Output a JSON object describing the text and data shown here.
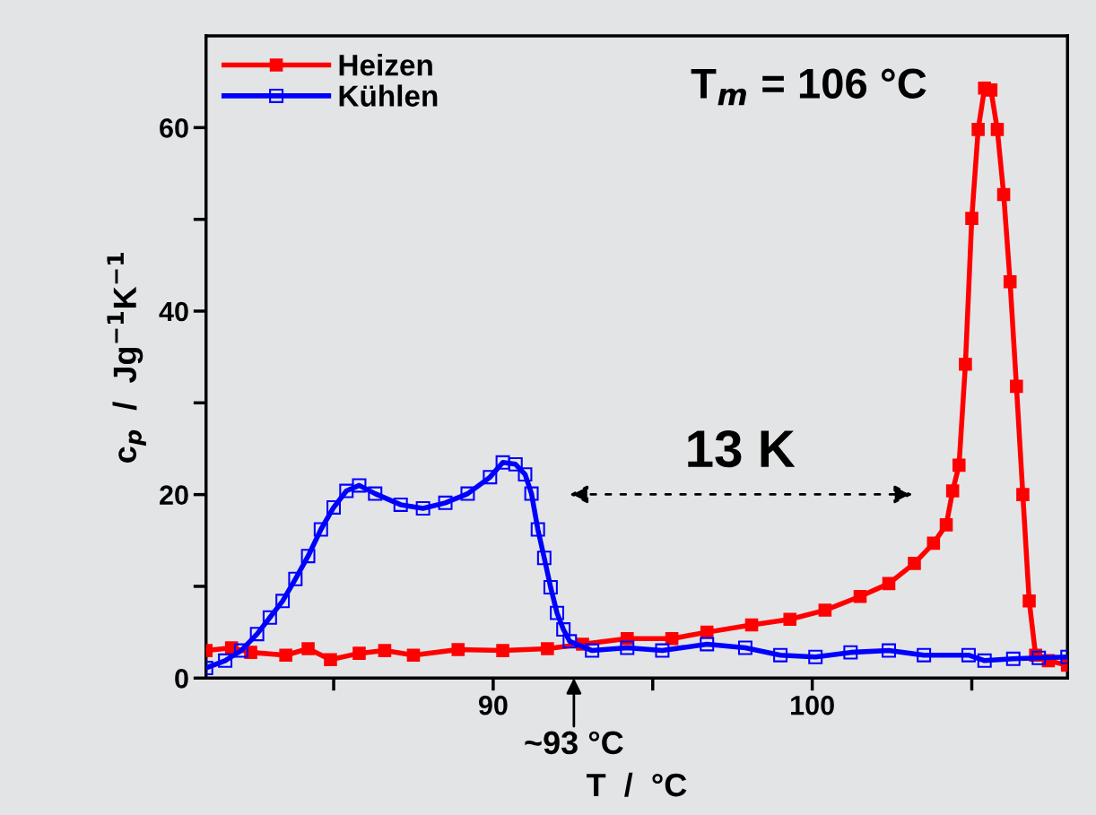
{
  "chart_data": {
    "type": "line",
    "xlabel": "T  /  °C",
    "ylabel": "c$_{p}$  /  Jg$^{−1}$K$^{−1}$",
    "xlim": [
      81,
      108
    ],
    "xticks": [
      {
        "value": 85,
        "label": null
      },
      90,
      {
        "value": 95,
        "label": null
      },
      100,
      {
        "value": 105,
        "label": null
      }
    ],
    "ylim": [
      0,
      70
    ],
    "yticks": [
      0,
      {
        "value": 10,
        "label": null
      },
      20,
      {
        "value": 30,
        "label": null
      },
      40,
      {
        "value": 50,
        "label": null
      },
      60
    ],
    "marker": "square",
    "line_style": "solid",
    "legend": "top left",
    "grid": false,
    "annotations": [
      "T$_{m}$ = 106 °C",
      "13 K",
      "~93 °C"
    ],
    "series": [
      {
        "name": "Heizen",
        "color": "#ff0000",
        "x": [
          81.0,
          81.8,
          82.4,
          83.5,
          84.2,
          84.9,
          85.8,
          86.6,
          87.5,
          88.9,
          90.3,
          91.7,
          92.8,
          94.2,
          95.6,
          96.7,
          98.1,
          99.3,
          100.4,
          101.5,
          102.4,
          103.2,
          103.8,
          104.2,
          104.4,
          104.6,
          104.8,
          105.0,
          105.2,
          105.4,
          105.6,
          105.8,
          106.0,
          106.2,
          106.4,
          106.6,
          106.8,
          107.0,
          107.4,
          108.0
        ],
        "values": [
          3.0,
          3.3,
          2.8,
          2.5,
          3.2,
          2.0,
          2.7,
          3.0,
          2.5,
          3.1,
          3.0,
          3.2,
          3.7,
          4.3,
          4.3,
          5.0,
          5.8,
          6.4,
          7.4,
          8.9,
          10.3,
          12.5,
          14.7,
          16.7,
          20.4,
          23.2,
          34.2,
          50.1,
          59.8,
          64.3,
          64.1,
          59.8,
          52.7,
          43.2,
          31.8,
          20.0,
          8.4,
          2.5,
          1.9,
          1.4
        ]
      },
      {
        "name": "Kühlen",
        "color": "#0000ff",
        "x": [
          81.0,
          81.6,
          82.1,
          82.6,
          83.0,
          83.4,
          83.8,
          84.2,
          84.6,
          85.0,
          85.4,
          85.8,
          86.3,
          87.1,
          87.8,
          88.5,
          89.2,
          89.9,
          90.3,
          90.7,
          91.0,
          91.2,
          91.4,
          91.6,
          91.8,
          92.0,
          92.2,
          92.4,
          93.1,
          94.2,
          95.3,
          96.7,
          97.9,
          99.0,
          100.1,
          101.2,
          102.4,
          103.5,
          104.9,
          105.4,
          106.3,
          107.1,
          108.0
        ],
        "values": [
          1.1,
          1.9,
          3.0,
          4.8,
          6.6,
          8.4,
          10.8,
          13.3,
          16.2,
          18.6,
          20.4,
          21.0,
          20.1,
          18.9,
          18.5,
          19.1,
          20.1,
          21.9,
          23.5,
          23.3,
          22.2,
          20.1,
          16.2,
          13.1,
          9.9,
          7.1,
          5.3,
          4.0,
          3.0,
          3.3,
          3.0,
          3.7,
          3.3,
          2.5,
          2.3,
          2.8,
          3.0,
          2.5,
          2.5,
          1.9,
          2.1,
          2.2,
          2.3
        ]
      }
    ]
  }
}
